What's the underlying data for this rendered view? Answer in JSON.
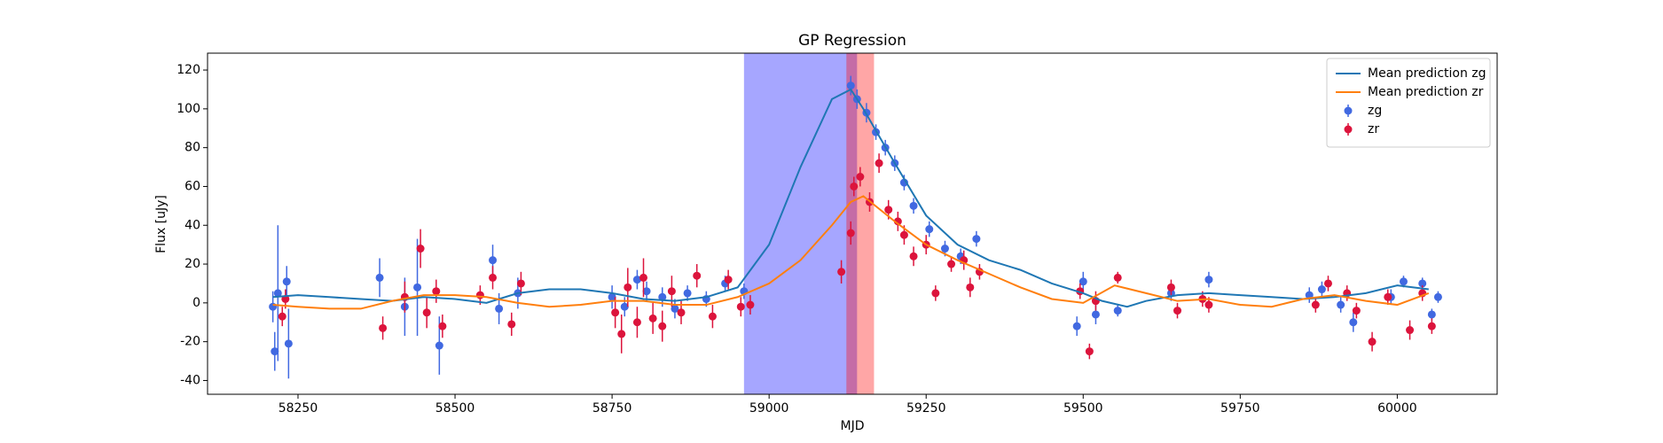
{
  "chart_data": {
    "type": "errorbar-line",
    "title": "GP Regression",
    "x_label": "MJD",
    "y_label": "Flux [uJy]",
    "xlim": [
      58106,
      60159
    ],
    "ylim": [
      -47.1,
      128.7
    ],
    "xticks": [
      58250,
      58500,
      58750,
      59000,
      59250,
      59500,
      59750,
      60000
    ],
    "yticks": [
      -40,
      -20,
      0,
      20,
      40,
      60,
      80,
      100,
      120
    ],
    "legend": "upper right",
    "spans": [
      {
        "x0": 58960,
        "x1": 59140,
        "color": "#0000ff"
      },
      {
        "x0": 59123,
        "x1": 59167,
        "color": "#ff0000"
      }
    ],
    "series": [
      {
        "name": "Mean prediction zg",
        "kind": "line",
        "color": "#1f77b4",
        "x": [
          58210,
          58250,
          58300,
          58350,
          58400,
          58450,
          58500,
          58550,
          58600,
          58650,
          58700,
          58750,
          58800,
          58850,
          58900,
          58950,
          59000,
          59050,
          59100,
          59130,
          59150,
          59200,
          59250,
          59300,
          59350,
          59400,
          59450,
          59500,
          59530,
          59570,
          59600,
          59650,
          59700,
          59750,
          59800,
          59850,
          59900,
          59950,
          60000,
          60050
        ],
        "values": [
          3,
          4,
          3,
          2,
          1,
          3,
          2,
          0,
          5,
          7,
          7,
          5,
          2,
          1,
          3,
          8,
          30,
          70,
          105,
          110,
          100,
          72,
          45,
          30,
          22,
          17,
          10,
          5,
          1,
          -2,
          1,
          4,
          5,
          4,
          3,
          2,
          3,
          5,
          9,
          7
        ]
      },
      {
        "name": "Mean prediction zr",
        "kind": "line",
        "color": "#ff7f0e",
        "x": [
          58210,
          58250,
          58300,
          58350,
          58400,
          58450,
          58500,
          58550,
          58600,
          58650,
          58700,
          58750,
          58800,
          58850,
          58900,
          58950,
          59000,
          59050,
          59100,
          59130,
          59150,
          59200,
          59250,
          59300,
          59350,
          59400,
          59450,
          59500,
          59550,
          59600,
          59650,
          59700,
          59750,
          59800,
          59850,
          59900,
          59950,
          60000,
          60050
        ],
        "values": [
          -1,
          -2,
          -3,
          -3,
          1,
          4,
          4,
          3,
          0,
          -2,
          -1,
          1,
          1,
          -1,
          -1,
          3,
          10,
          22,
          40,
          52,
          55,
          42,
          30,
          22,
          15,
          8,
          2,
          0,
          9,
          5,
          1,
          2,
          -1,
          -2,
          2,
          4,
          1,
          -1,
          5
        ]
      },
      {
        "name": "zg",
        "kind": "errorbar",
        "color": "#4169e1",
        "x": [
          58210,
          58213,
          58218,
          58232,
          58235,
          58380,
          58420,
          58440,
          58475,
          58560,
          58570,
          58600,
          58750,
          58770,
          58790,
          58805,
          58830,
          58850,
          58870,
          58900,
          58930,
          58960,
          59130,
          59140,
          59155,
          59170,
          59185,
          59200,
          59215,
          59230,
          59255,
          59280,
          59305,
          59330,
          59490,
          59500,
          59520,
          59555,
          59640,
          59700,
          59860,
          59880,
          59910,
          59930,
          59990,
          60010,
          60040,
          60055,
          60065
        ],
        "values": [
          -2,
          -25,
          5,
          11,
          -21,
          13,
          -2,
          8,
          -22,
          22,
          -3,
          5,
          3,
          -2,
          12,
          6,
          3,
          -3,
          5,
          2,
          10,
          6,
          112,
          105,
          98,
          88,
          80,
          72,
          62,
          50,
          38,
          28,
          24,
          33,
          -12,
          11,
          -6,
          -4,
          5,
          12,
          4,
          7,
          -1,
          -10,
          3,
          11,
          10,
          -6,
          3
        ],
        "errors": [
          8,
          10,
          35,
          8,
          18,
          10,
          15,
          25,
          15,
          8,
          8,
          8,
          6,
          5,
          5,
          5,
          5,
          5,
          4,
          4,
          4,
          4,
          5,
          5,
          5,
          4,
          4,
          4,
          4,
          4,
          4,
          4,
          4,
          4,
          5,
          5,
          5,
          3,
          4,
          4,
          4,
          4,
          4,
          5,
          4,
          3,
          3,
          3,
          3
        ]
      },
      {
        "name": "zr",
        "kind": "errorbar",
        "color": "#dc143c",
        "x": [
          58225,
          58230,
          58385,
          58420,
          58445,
          58455,
          58470,
          58480,
          58540,
          58560,
          58590,
          58605,
          58755,
          58765,
          58775,
          58790,
          58800,
          58815,
          58830,
          58845,
          58860,
          58885,
          58910,
          58935,
          58955,
          58970,
          59115,
          59130,
          59135,
          59145,
          59160,
          59175,
          59190,
          59205,
          59215,
          59230,
          59250,
          59265,
          59290,
          59310,
          59320,
          59335,
          59495,
          59510,
          59520,
          59555,
          59640,
          59650,
          59690,
          59700,
          59870,
          59890,
          59920,
          59935,
          59960,
          59985,
          60020,
          60040,
          60055
        ],
        "values": [
          -7,
          2,
          -13,
          3,
          28,
          -5,
          6,
          -12,
          4,
          13,
          -11,
          10,
          -5,
          -16,
          8,
          -10,
          13,
          -8,
          -12,
          6,
          -5,
          14,
          -7,
          12,
          -2,
          -1,
          16,
          36,
          60,
          65,
          52,
          72,
          48,
          42,
          35,
          24,
          30,
          5,
          20,
          22,
          8,
          16,
          6,
          -25,
          1,
          13,
          8,
          -4,
          2,
          -1,
          -1,
          10,
          5,
          -4,
          -20,
          3,
          -14,
          5,
          -12
        ],
        "errors": [
          5,
          5,
          6,
          8,
          10,
          8,
          6,
          6,
          5,
          6,
          6,
          6,
          8,
          10,
          10,
          8,
          10,
          8,
          8,
          8,
          6,
          6,
          6,
          5,
          5,
          5,
          6,
          6,
          5,
          5,
          5,
          5,
          5,
          5,
          5,
          5,
          5,
          4,
          4,
          5,
          5,
          4,
          4,
          4,
          5,
          3,
          4,
          4,
          4,
          4,
          4,
          4,
          4,
          4,
          5,
          4,
          5,
          4,
          4
        ]
      }
    ]
  }
}
